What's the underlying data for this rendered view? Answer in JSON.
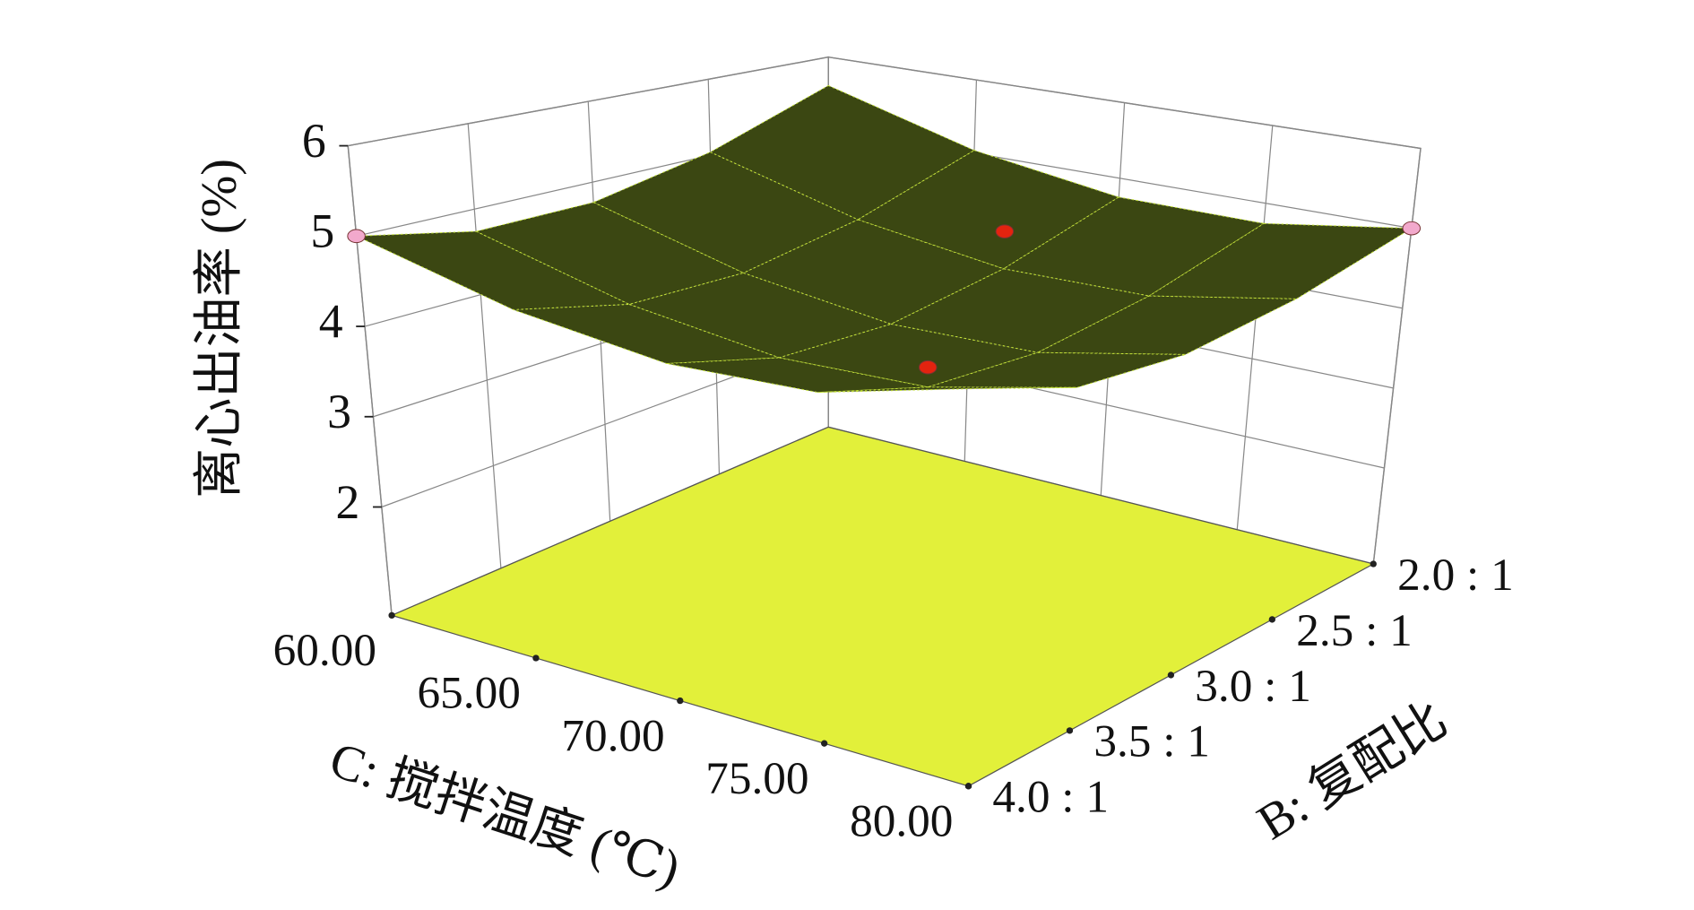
{
  "chart_data": {
    "type": "surface3d",
    "zlabel": "离心出油率 (%)",
    "xlabel": "C: 搅拌温度 (℃)",
    "ylabel": "B: 复配比",
    "xlim": [
      60,
      80
    ],
    "ylim": [
      2,
      4
    ],
    "zlim": [
      0.8,
      6
    ],
    "xticks": [
      {
        "value": 60,
        "label": "60.00"
      },
      {
        "value": 65,
        "label": "65.00"
      },
      {
        "value": 70,
        "label": "70.00"
      },
      {
        "value": 75,
        "label": "75.00"
      },
      {
        "value": 80,
        "label": "80.00"
      }
    ],
    "yticks": [
      {
        "value": 2,
        "label": "2.0 : 1"
      },
      {
        "value": 2.5,
        "label": "2.5 : 1"
      },
      {
        "value": 3,
        "label": "3.0 : 1"
      },
      {
        "value": 3.5,
        "label": "3.5 : 1"
      },
      {
        "value": 4,
        "label": "4.0 : 1"
      }
    ],
    "zticks": [
      2,
      3,
      4,
      5,
      6
    ],
    "grid": true,
    "surface": {
      "x": [
        60,
        65,
        70,
        75,
        80
      ],
      "y": [
        2,
        2.5,
        3,
        3.5,
        4
      ],
      "z": [
        [
          5.6,
          5.04,
          4.75,
          4.74,
          5.0
        ],
        [
          5.04,
          4.46,
          4.15,
          4.12,
          4.36
        ],
        [
          4.75,
          4.15,
          3.83,
          3.78,
          4.0
        ],
        [
          4.74,
          4.12,
          3.78,
          3.71,
          3.91
        ],
        [
          5.0,
          4.36,
          4.0,
          3.91,
          4.1
        ]
      ],
      "color": "#3b4712",
      "mesh_color": "#c6e43a"
    },
    "floor_color": "#e2f03a",
    "points": {
      "x": [
        60,
        80,
        70,
        75
      ],
      "y": [
        4,
        2,
        2.5,
        3.5
      ],
      "z": [
        5.0,
        5.0,
        4.6,
        3.9
      ],
      "colors": [
        "#f2a9cc",
        "#f2a9cc",
        "#e3230f",
        "#e3230f"
      ]
    }
  }
}
